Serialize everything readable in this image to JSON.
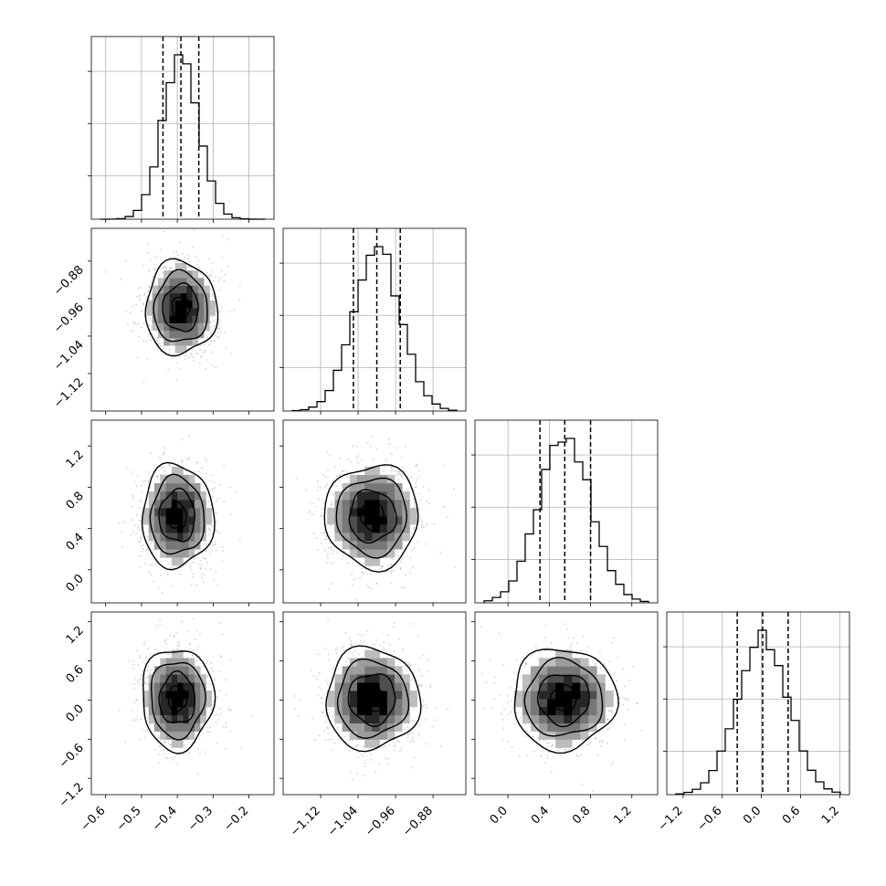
{
  "colors": {
    "background": "#ffffff",
    "ink": "#000000",
    "grid": "#b0b0b0",
    "scatter": "#9a9a9a",
    "density_ramp": [
      "#d9d9d9",
      "#bdbdbd",
      "#9c9c9c",
      "#777777",
      "#4f4f4f",
      "#262626",
      "#000000"
    ]
  },
  "chart_data": {
    "type": "corner",
    "description_of_panels": "lower-triangle 2D histograms with contours; diagonal 1D histograms",
    "grid": true,
    "parameters": [
      {
        "index": 0,
        "mean": -0.39,
        "sd": 0.05,
        "quantiles": [
          -0.44,
          -0.39,
          -0.34
        ],
        "range": [
          -0.64,
          -0.13
        ],
        "ticks": [
          -0.6,
          -0.5,
          -0.4,
          -0.3,
          -0.2
        ],
        "tick_labels": [
          "−0.6",
          "−0.5",
          "−0.4",
          "−0.3",
          "−0.2"
        ]
      },
      {
        "index": 1,
        "mean": -1.0,
        "sd": 0.05,
        "quantiles": [
          -1.05,
          -1.0,
          -0.95
        ],
        "range": [
          -1.2,
          -0.81
        ],
        "ticks": [
          -1.12,
          -1.04,
          -0.96,
          -0.88
        ],
        "tick_labels": [
          "−1.12",
          "−1.04",
          "−0.96",
          "−0.88"
        ]
      },
      {
        "index": 2,
        "mean": 0.55,
        "sd": 0.25,
        "quantiles": [
          0.31,
          0.55,
          0.8
        ],
        "range": [
          -0.32,
          1.45
        ],
        "ticks": [
          0.0,
          0.4,
          0.8,
          1.2
        ],
        "tick_labels": [
          "0.0",
          "0.4",
          "0.8",
          "1.2"
        ]
      },
      {
        "index": 3,
        "mean": 0.02,
        "sd": 0.39,
        "quantiles": [
          -0.37,
          0.02,
          0.41
        ],
        "range": [
          -1.45,
          1.35
        ],
        "ticks": [
          -1.2,
          -0.6,
          0.0,
          0.6,
          1.2
        ],
        "tick_labels": [
          "−1.2",
          "−0.6",
          "0.0",
          "0.6",
          "1.2"
        ]
      }
    ],
    "diagonal_histograms": [
      {
        "param": 0,
        "bins": 20,
        "shape": "gaussian",
        "peak_bin_center": -0.39
      },
      {
        "param": 1,
        "bins": 20,
        "shape": "gaussian",
        "peak_bin_center": -1.0
      },
      {
        "param": 2,
        "bins": 20,
        "shape": "gaussian",
        "peak_bin_center": 0.55
      },
      {
        "param": 3,
        "bins": 20,
        "shape": "gaussian",
        "peak_bin_center": 0.02
      }
    ],
    "pair_panels": [
      {
        "x_param": 0,
        "y_param": 1,
        "peak": [
          -0.39,
          -0.98
        ]
      },
      {
        "x_param": 0,
        "y_param": 2,
        "peak": [
          -0.4,
          0.52
        ]
      },
      {
        "x_param": 1,
        "y_param": 2,
        "peak": [
          -1.01,
          0.52
        ]
      },
      {
        "x_param": 0,
        "y_param": 3,
        "peak": [
          -0.4,
          0.02
        ]
      },
      {
        "x_param": 1,
        "y_param": 3,
        "peak": [
          -1.01,
          0.02
        ]
      },
      {
        "x_param": 2,
        "y_param": 3,
        "peak": [
          0.54,
          0.02
        ]
      }
    ],
    "contour_levels_sigma": [
      0.5,
      1.0,
      1.5,
      2.0
    ]
  }
}
